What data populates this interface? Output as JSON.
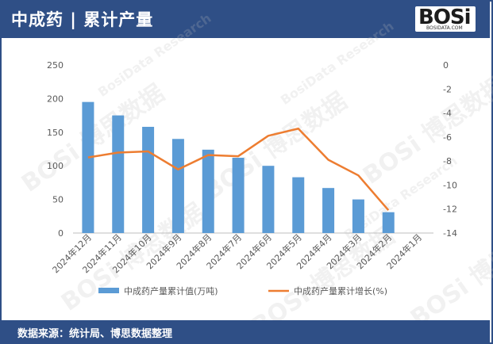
{
  "header": {
    "title": "中成药 | 累计产量",
    "logo_text": "BOSi",
    "logo_sub": "BOSIDATA.COM"
  },
  "footer": {
    "source": "数据来源：统计局、博思数据整理"
  },
  "watermarks": [
    "BOSi 博思数据",
    "BosiData Research"
  ],
  "colors": {
    "header_bg": "#2f4f86",
    "bar": "#5b9bd5",
    "line": "#ed7d31",
    "axis_text": "#595959"
  },
  "chart_data": {
    "type": "bar+line",
    "categories": [
      "2024年12月",
      "2024年11月",
      "2024年10月",
      "2024年9月",
      "2024年8月",
      "2024年7月",
      "2024年6月",
      "2024年5月",
      "2024年4月",
      "2024年3月",
      "2024年2月",
      "2024年1月"
    ],
    "series": [
      {
        "name": "中成药产量累计值(万吨)",
        "type": "bar",
        "axis": "left",
        "values": [
          195,
          175,
          158,
          140,
          124,
          112,
          100,
          83,
          67,
          50,
          31,
          null
        ]
      },
      {
        "name": "中成药产量累计增长(%)",
        "type": "line",
        "axis": "right",
        "values": [
          -7.7,
          -7.3,
          -7.2,
          -8.7,
          -7.5,
          -7.6,
          -5.9,
          -5.3,
          -7.9,
          -9.2,
          -12.1,
          null
        ]
      }
    ],
    "y_left": {
      "min": 0,
      "max": 250,
      "ticks": [
        0,
        50,
        100,
        150,
        200,
        250
      ]
    },
    "y_right": {
      "min": -14,
      "max": 0,
      "ticks": [
        0,
        -2,
        -4,
        -6,
        -8,
        -10,
        -12,
        -14
      ]
    },
    "legend_position": "bottom",
    "grid": false
  }
}
